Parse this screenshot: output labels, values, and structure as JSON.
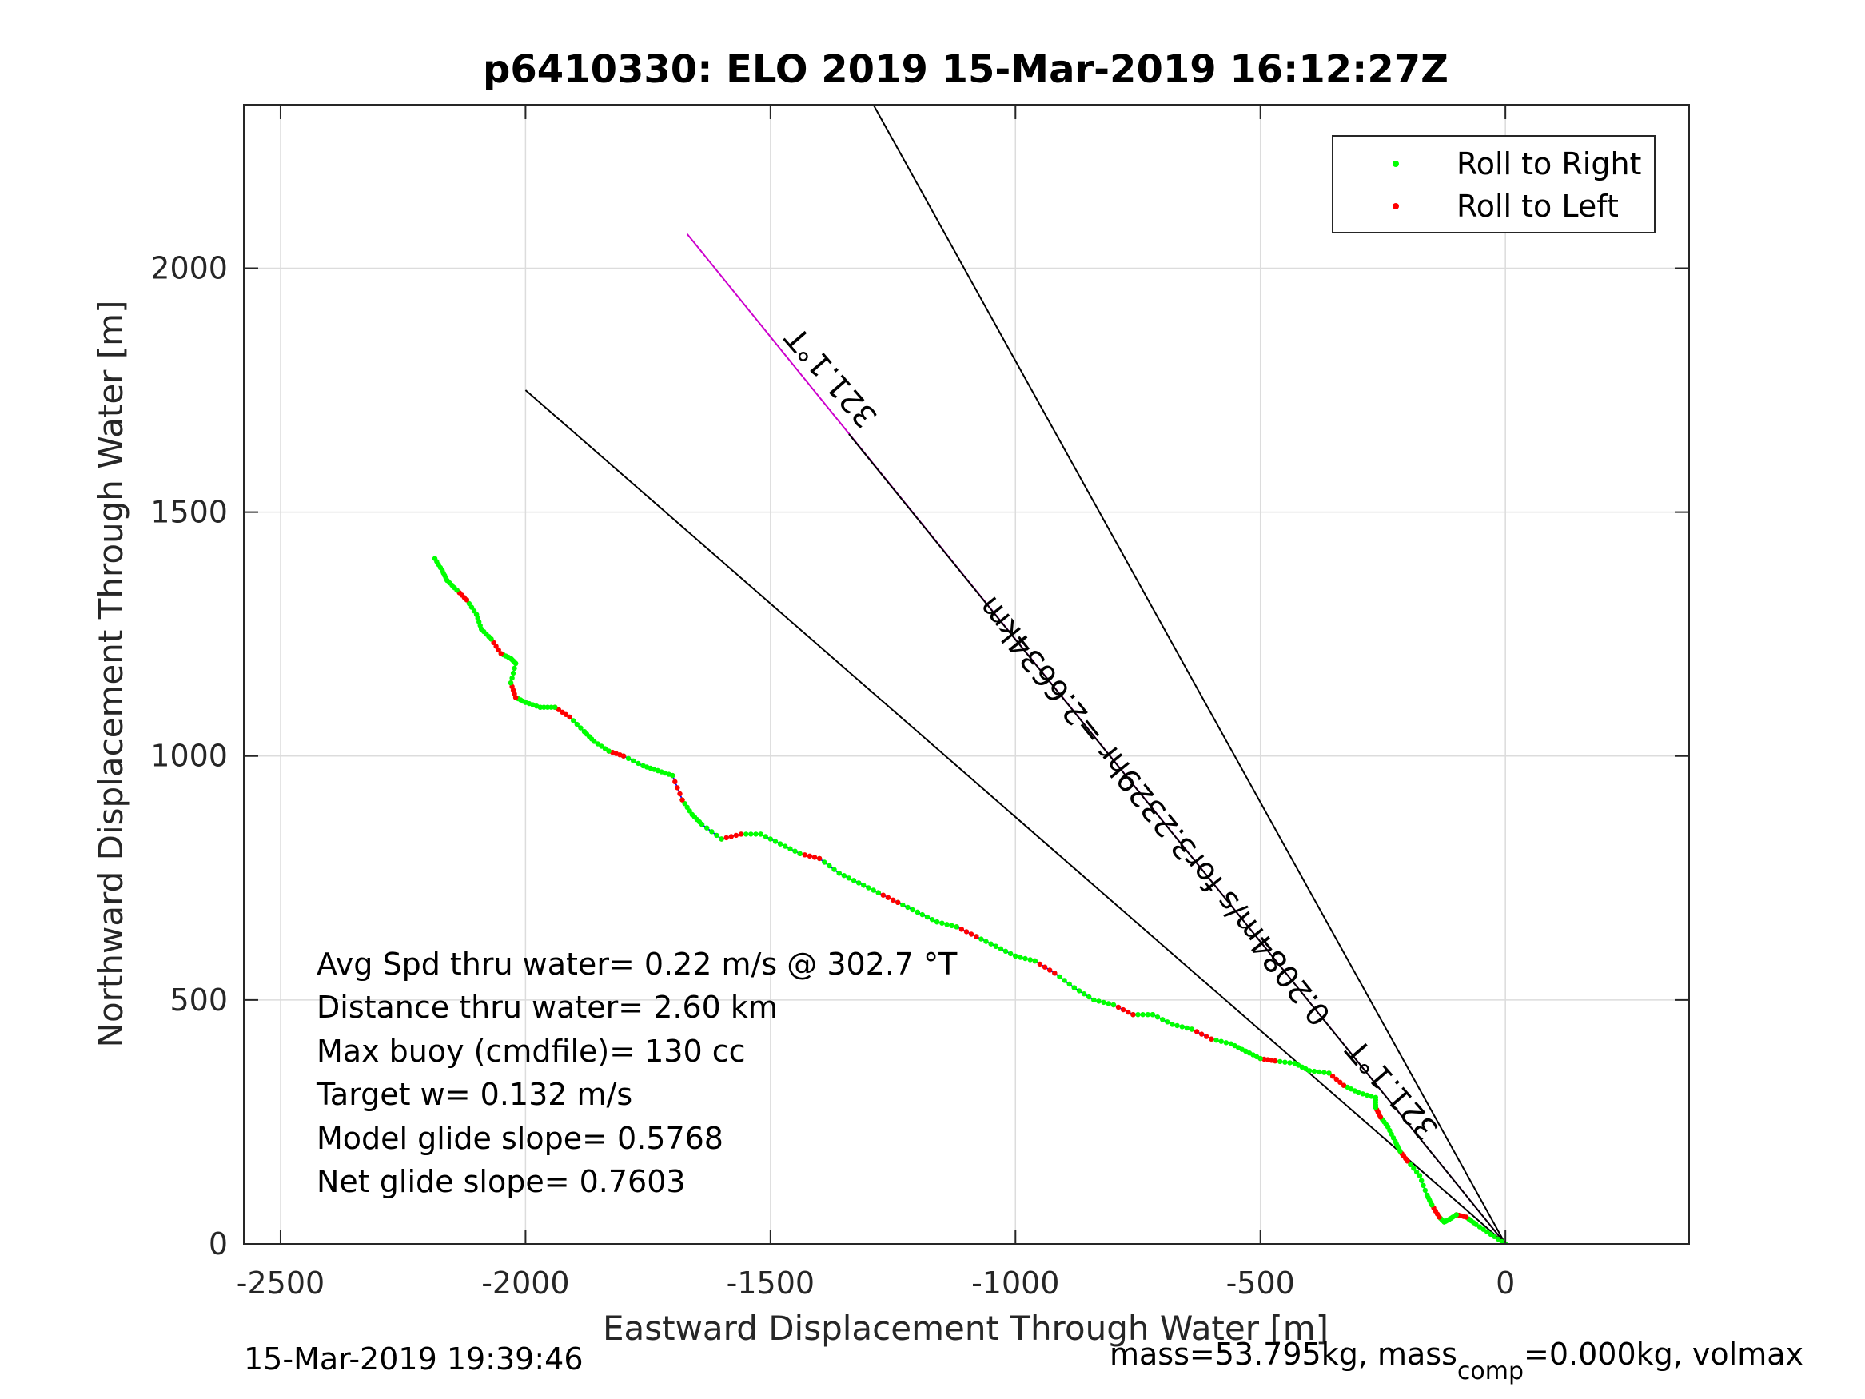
{
  "chart_data": {
    "type": "scatter",
    "title": "p6410330: ELO 2019 15-Mar-2019 16:12:27Z",
    "xlabel": "Eastward Displacement Through Water [m]",
    "ylabel": "Northward Displacement Through Water [m]",
    "xlim": [
      -2575,
      375
    ],
    "ylim": [
      0,
      2335
    ],
    "xticks": [
      -2500,
      -2000,
      -1500,
      -1000,
      -500,
      0
    ],
    "yticks": [
      0,
      500,
      1000,
      1500,
      2000
    ],
    "xtick_labels": [
      "-2500",
      "-2000",
      "-1500",
      "-1000",
      "-500",
      "0"
    ],
    "ytick_labels": [
      "0",
      "500",
      "1000",
      "1500",
      "2000"
    ],
    "grid": true,
    "legend_position": "top-right",
    "legend": [
      {
        "label": "Roll to Right",
        "color": "#00ff00"
      },
      {
        "label": "Roll to Left",
        "color": "#ff0000"
      }
    ],
    "track": {
      "color": "#0000ff",
      "x": [
        0,
        -30,
        -60,
        -80,
        -100,
        -115,
        -125,
        -135,
        -150,
        -160,
        -175,
        -200,
        -215,
        -225,
        -240,
        -255,
        -265,
        -265,
        -300,
        -330,
        -360,
        -400,
        -430,
        -470,
        -500,
        -530,
        -560,
        -600,
        -640,
        -680,
        -720,
        -760,
        -800,
        -840,
        -880,
        -920,
        -960,
        -1000,
        -1040,
        -1080,
        -1120,
        -1160,
        -1200,
        -1240,
        -1280,
        -1320,
        -1360,
        -1400,
        -1440,
        -1480,
        -1520,
        -1560,
        -1600,
        -1640,
        -1660,
        -1680,
        -1700,
        -1730,
        -1760,
        -1800,
        -1830,
        -1860,
        -1880,
        -1910,
        -1940,
        -1970,
        -2000,
        -2020,
        -2030,
        -2020,
        -2030,
        -2050,
        -2070,
        -2090,
        -2100,
        -2120,
        -2140,
        -2160,
        -2170,
        -2185
      ],
      "y": [
        0,
        20,
        40,
        55,
        60,
        50,
        45,
        55,
        80,
        100,
        140,
        170,
        190,
        210,
        240,
        260,
        280,
        300,
        310,
        325,
        350,
        355,
        370,
        375,
        380,
        395,
        410,
        420,
        440,
        450,
        470,
        470,
        490,
        500,
        525,
        555,
        580,
        590,
        610,
        630,
        650,
        660,
        680,
        700,
        720,
        740,
        760,
        790,
        800,
        820,
        840,
        840,
        830,
        860,
        880,
        910,
        960,
        970,
        980,
        1000,
        1010,
        1030,
        1050,
        1080,
        1100,
        1100,
        1110,
        1120,
        1150,
        1190,
        1200,
        1210,
        1240,
        1260,
        1290,
        1320,
        1340,
        1360,
        1380,
        1405
      ]
    },
    "lines": [
      {
        "name": "heading-line-321-1",
        "color": "#000000",
        "x": [
          0,
          -1290
        ],
        "y": [
          0,
          2335
        ]
      },
      {
        "name": "avg-line",
        "color": "#000000",
        "x": [
          0,
          -2000
        ],
        "y": [
          0,
          1750
        ]
      },
      {
        "name": "current-line",
        "color": "#cc00cc",
        "x": [
          0,
          -1670
        ],
        "y": [
          0,
          2070
        ]
      },
      {
        "name": "current-line-black",
        "color": "#000000",
        "x": [
          0,
          -1340
        ],
        "y": [
          0,
          1660
        ]
      }
    ],
    "annotations": [
      {
        "text": "321.1°T",
        "x": -1360,
        "y": 1790,
        "rotation": 229.1
      },
      {
        "text": "0.2084m/s for3.2329hr =2.6634km",
        "x": -700,
        "y": 900,
        "rotation": 231.1
      },
      {
        "text": "321.1°T",
        "x": -215,
        "y": 330,
        "rotation": 229.1
      }
    ],
    "stats_text": [
      "Avg Spd thru water=  0.22 m/s @ 302.7 °T",
      "Distance thru water=  2.60 km",
      "Max buoy (cmdfile)= 130 cc",
      "Target w= 0.132 m/s",
      "Model glide slope= 0.5768",
      "Net glide slope= 0.7603"
    ]
  },
  "footer": {
    "left": "15-Mar-2019 19:39:46",
    "right_prefix": "mass=53.795kg, mass",
    "right_sub": "comp",
    "right_suffix": "=0.000kg, volmax"
  }
}
